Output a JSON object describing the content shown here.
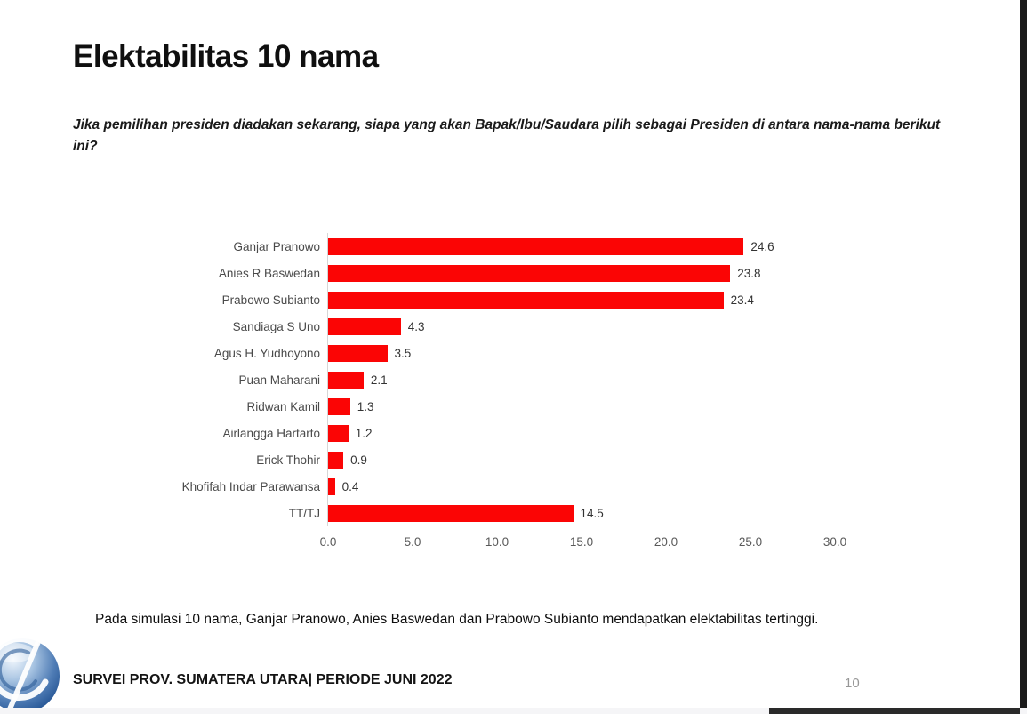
{
  "slide": {
    "title": "Elektabilitas 10 nama",
    "question": "Jika pemilihan presiden diadakan sekarang, siapa yang akan Bapak/Ibu/Saudara pilih sebagai Presiden di antara nama-nama berikut ini?",
    "note": "Pada simulasi 10 nama, Ganjar Pranowo, Anies Baswedan dan Prabowo Subianto mendapatkan elektabilitas tertinggi.",
    "footer": "SURVEI PROV. SUMATERA UTARA| PERIODE JUNI 2022",
    "page_number": "10"
  },
  "chart_data": {
    "type": "bar",
    "orientation": "horizontal",
    "title": "",
    "xlabel": "",
    "ylabel": "",
    "categories": [
      "Ganjar Pranowo",
      "Anies R Baswedan",
      "Prabowo Subianto",
      "Sandiaga S Uno",
      "Agus H. Yudhoyono",
      "Puan Maharani",
      "Ridwan Kamil",
      "Airlangga Hartarto",
      "Erick Thohir",
      "Khofifah Indar Parawansa",
      "TT/TJ"
    ],
    "values": [
      24.6,
      23.8,
      23.4,
      4.3,
      3.5,
      2.1,
      1.3,
      1.2,
      0.9,
      0.4,
      14.5
    ],
    "x_ticks": [
      "0.0",
      "5.0",
      "10.0",
      "15.0",
      "20.0",
      "25.0",
      "30.0"
    ],
    "xlim": [
      0,
      30
    ],
    "grid": false,
    "legend": false,
    "bar_color": "#fb0505",
    "axis_line_color": "#d6d6d6",
    "label_color": "#4a4a4a"
  },
  "colors": {
    "background": "#ffffff",
    "title_text": "#0f0f0f",
    "edge_bar": "#1b1b1b",
    "logo_blue_dark": "#1f4f8f",
    "logo_blue_light": "#eef4fb"
  }
}
